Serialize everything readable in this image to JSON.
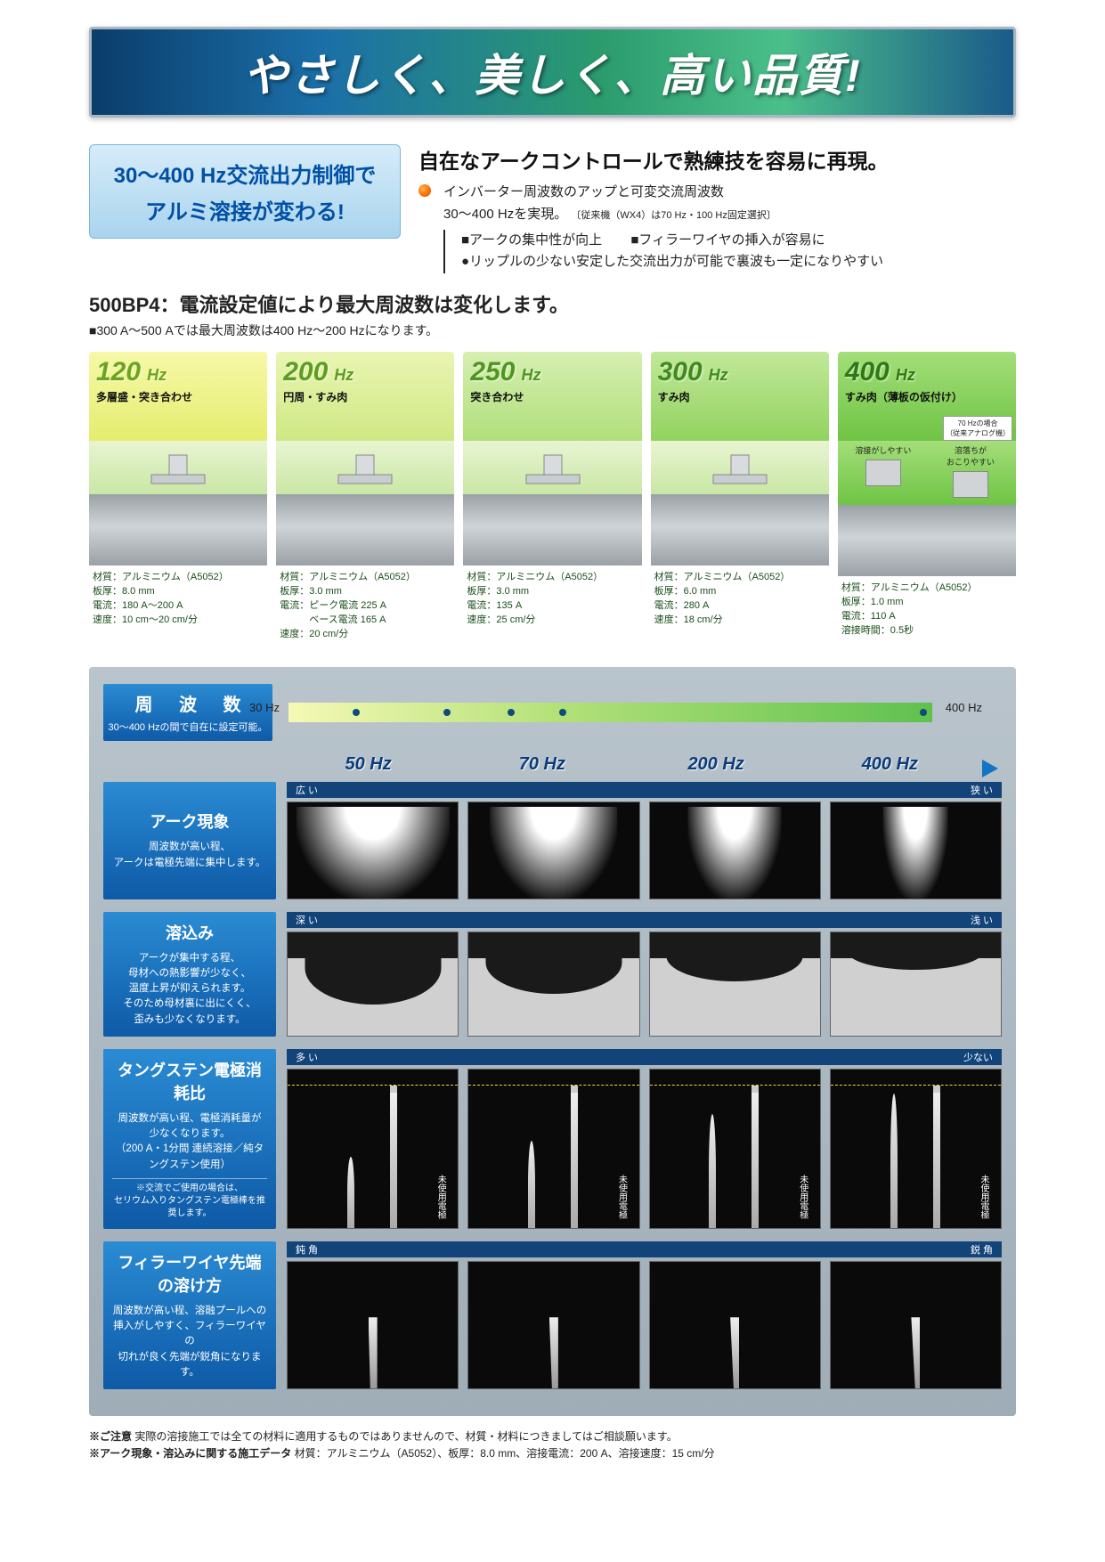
{
  "hero": "やさしく、美しく、高い品質!",
  "callout": {
    "line1": "30〜400 Hz交流出力制御で",
    "line2": "アルミ溶接が変わる!"
  },
  "feature_head": "自在なアークコントロールで熟練技を容易に再現。",
  "bullets": {
    "b1": "インバーター周波数のアップと可変交流周波数",
    "b1b": "30〜400 Hzを実現。",
    "b1b_note": "〔従来機（WX4）は70 Hz・100 Hz固定選択〕",
    "b2a": "■アークの集中性が向上",
    "b2b": "■フィラーワイヤの挿入が容易に",
    "b3": "●リップルの少ない安定した交流出力が可能で裏波も一定になりやすい"
  },
  "section_head": "500BP4：電流設定値により最大周波数は変化します。",
  "section_sub": "■300 A〜500 Aでは最大周波数は400 Hz〜200 Hzになります。",
  "cards": [
    {
      "hz": "120",
      "unit": "Hz",
      "tag": "多層盛・突き合わせ",
      "bg_from": "#f7f8a8",
      "bg_to": "#e4ed6f",
      "hz_color": "#6aa51b",
      "specs": [
        "材質：アルミニウム（A5052）",
        "板厚：8.0 mm",
        "電流：180 A〜200 A",
        "速度：10 cm〜20 cm/分"
      ]
    },
    {
      "hz": "200",
      "unit": "Hz",
      "tag": "円周・すみ肉",
      "bg_from": "#eaf5b3",
      "bg_to": "#cfe883",
      "hz_color": "#5c9d1f",
      "specs": [
        "材質：アルミニウム（A5052）",
        "板厚：3.0 mm",
        "電流：ピーク電流 225 A",
        "　　　ベース電流 165 A",
        "速度：20 cm/分"
      ]
    },
    {
      "hz": "250",
      "unit": "Hz",
      "tag": "突き合わせ",
      "bg_from": "#d6efb1",
      "bg_to": "#b1df7b",
      "hz_color": "#4f951f",
      "specs": [
        "材質：アルミニウム（A5052）",
        "板厚：3.0 mm",
        "電流：135 A",
        "速度：25 cm/分"
      ]
    },
    {
      "hz": "300",
      "unit": "Hz",
      "tag": "すみ肉",
      "bg_from": "#c1e89a",
      "bg_to": "#92d35f",
      "hz_color": "#3f8a1a",
      "specs": [
        "材質：アルミニウム（A5052）",
        "板厚：6.0 mm",
        "電流：280 A",
        "速度：18 cm/分"
      ]
    },
    {
      "hz": "400",
      "unit": "Hz",
      "tag": "すみ肉（薄板の仮付け）",
      "bg_from": "#a4de79",
      "bg_to": "#6fc445",
      "hz_color": "#2e7a12",
      "specs": [
        "材質：アルミニウム（A5052）",
        "板厚：1.0 mm",
        "電流：110 A",
        "溶接時間：0.5秒"
      ]
    }
  ],
  "card5_extra": {
    "left": "溶接がしやすい",
    "right": "溶落ちが\nおこりやすい",
    "badge": "70 Hzの場合\n（従来アナログ機）"
  },
  "freq_bar": {
    "label_t": "周 波 数",
    "label_s": "30〜400 Hzの間で自在に設定可能。",
    "left": "30 Hz",
    "right": "400 Hz",
    "dots_pct": [
      10,
      24,
      34,
      42,
      98
    ]
  },
  "col_heads": [
    "50 Hz",
    "70 Hz",
    "200 Hz",
    "400 Hz"
  ],
  "rows": [
    {
      "t": "アーク現象",
      "s": "周波数が高い程、\nアークは電極先端に集中します。",
      "scale_l": "広 い",
      "scale_r": "狭 い",
      "kind": "arc",
      "widths": [
        90,
        75,
        55,
        38
      ]
    },
    {
      "t": "溶込み",
      "s": "アークが集中する程、\n母材への熱影響が少なく、\n温度上昇が抑えられます。\nそのため母材裏に出にくく、\n歪みも少なくなります。",
      "scale_l": "深 い",
      "scale_r": "浅 い",
      "kind": "pen",
      "depths": [
        70,
        60,
        48,
        36
      ]
    },
    {
      "t": "タングステン電極消耗比",
      "s": "周波数が高い程、電極消耗量が\n少なくなります。\n（200 A・1分間 連続溶接／純タングステン使用）",
      "s2": "※交流でご使用の場合は、\nセリウム入りタングステン電極棒を推奨します。",
      "scale_l": "多 い",
      "scale_r": "少ない",
      "kind": "elec",
      "heights": [
        45,
        55,
        72,
        85
      ],
      "elec_label": "未使用電極"
    },
    {
      "t": "フィラーワイヤ先端の溶け方",
      "s": "周波数が高い程、溶融プールへの\n挿入がしやすく、フィラーワイヤの\n切れが良く先端が鋭角になります。",
      "scale_l": "鈍 角",
      "scale_r": "鋭 角",
      "kind": "wire",
      "angles": [
        28,
        20,
        12,
        6
      ]
    }
  ],
  "footnotes": {
    "l1_b": "※ご注意",
    "l1": " 実際の溶接施工では全ての材料に適用するものではありませんので、材質・材料につきましてはご相談願います。",
    "l2_b": "※アーク現象・溶込みに関する施工データ",
    "l2": " 材質：アルミニウム（A5052）、板厚：8.0 mm、溶接電流：200 A、溶接速度：15 cm/分"
  },
  "colors": {
    "blue": "#0e5aa7",
    "blue_grad_top": "#2a8bd3",
    "panel_bg": "#b0bcc5"
  }
}
